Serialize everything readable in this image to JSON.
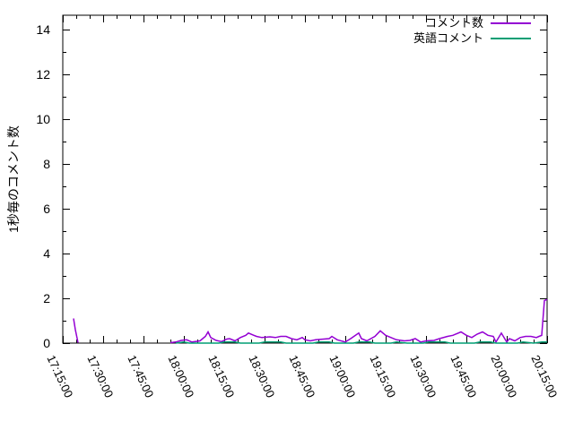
{
  "chart_data": {
    "type": "line",
    "title": "",
    "xlabel": "",
    "ylabel": "1秒毎のコメント数",
    "ylim": [
      0,
      14.64
    ],
    "ytick_values": [
      0,
      2,
      4,
      6,
      8,
      10,
      12,
      14
    ],
    "ytick_minor_step": 1,
    "xtick_labels": [
      "17:15:00",
      "17:30:00",
      "17:45:00",
      "18:00:00",
      "18:15:00",
      "18:30:00",
      "18:45:00",
      "19:00:00",
      "19:15:00",
      "19:30:00",
      "19:45:00",
      "20:00:00",
      "20:15:00"
    ],
    "x_start": "17:15:00",
    "x_end": "20:15:00",
    "x_minor_interval_seconds": 300,
    "x_major_interval_seconds": 900,
    "grid": false,
    "legend_position": "top-right-inside",
    "axis_color": "#000000",
    "background_color": "#ffffff",
    "series": [
      {
        "name": "コメント数",
        "key": "comments",
        "color": "#9400d3",
        "segments": [
          [
            [
              "17:19:00",
              1.1
            ],
            [
              "17:19:40",
              0.6
            ],
            [
              "17:20:40",
              0.02
            ]
          ],
          [
            [
              "17:55:00",
              0.02
            ],
            [
              "17:57:00",
              0.05
            ],
            [
              "17:59:00",
              0.12
            ],
            [
              "18:01:00",
              0.15
            ],
            [
              "18:03:00",
              0.05
            ],
            [
              "18:06:00",
              0.1
            ],
            [
              "18:08:00",
              0.3
            ],
            [
              "18:09:00",
              0.5
            ],
            [
              "18:10:00",
              0.25
            ],
            [
              "18:12:00",
              0.12
            ],
            [
              "18:14:00",
              0.07
            ],
            [
              "18:16:00",
              0.18
            ],
            [
              "18:17:00",
              0.2
            ],
            [
              "18:19:00",
              0.1
            ],
            [
              "18:21:00",
              0.25
            ],
            [
              "18:23:00",
              0.35
            ],
            [
              "18:24:00",
              0.45
            ],
            [
              "18:26:00",
              0.35
            ],
            [
              "18:27:00",
              0.3
            ],
            [
              "18:29:00",
              0.25
            ],
            [
              "18:32:00",
              0.28
            ],
            [
              "18:34:00",
              0.25
            ],
            [
              "18:36:00",
              0.3
            ],
            [
              "18:38:00",
              0.3
            ],
            [
              "18:40:00",
              0.2
            ],
            [
              "18:42:00",
              0.15
            ],
            [
              "18:44:00",
              0.25
            ],
            [
              "18:45:00",
              0.15
            ],
            [
              "18:47:00",
              0.1
            ],
            [
              "18:49:00",
              0.15
            ],
            [
              "18:52:00",
              0.18
            ],
            [
              "18:54:00",
              0.2
            ],
            [
              "18:55:00",
              0.3
            ],
            [
              "18:57:00",
              0.15
            ],
            [
              "19:00:00",
              0.05
            ],
            [
              "19:02:00",
              0.2
            ],
            [
              "19:05:00",
              0.45
            ],
            [
              "19:06:00",
              0.2
            ],
            [
              "19:08:00",
              0.1
            ],
            [
              "19:11:00",
              0.3
            ],
            [
              "19:13:00",
              0.55
            ],
            [
              "19:15:00",
              0.35
            ],
            [
              "19:17:00",
              0.25
            ],
            [
              "19:19:00",
              0.15
            ],
            [
              "19:22:00",
              0.1
            ],
            [
              "19:24:00",
              0.12
            ],
            [
              "19:26:00",
              0.2
            ],
            [
              "19:28:00",
              0.05
            ],
            [
              "19:30:00",
              0.1
            ],
            [
              "19:33:00",
              0.12
            ],
            [
              "19:35:00",
              0.2
            ],
            [
              "19:38:00",
              0.3
            ],
            [
              "19:40:00",
              0.35
            ],
            [
              "19:43:00",
              0.5
            ],
            [
              "19:45:00",
              0.35
            ],
            [
              "19:47:00",
              0.25
            ],
            [
              "19:49:00",
              0.4
            ],
            [
              "19:51:00",
              0.5
            ],
            [
              "19:53:00",
              0.35
            ],
            [
              "19:55:00",
              0.3
            ],
            [
              "19:56:00",
              0.05
            ],
            [
              "19:58:00",
              0.45
            ],
            [
              "20:00:00",
              0.05
            ],
            [
              "20:01:00",
              0.2
            ],
            [
              "20:03:00",
              0.1
            ],
            [
              "20:05:00",
              0.25
            ],
            [
              "20:07:00",
              0.3
            ],
            [
              "20:09:00",
              0.3
            ],
            [
              "20:11:00",
              0.25
            ],
            [
              "20:12:00",
              0.3
            ],
            [
              "20:13:00",
              0.35
            ],
            [
              "20:14:00",
              1.9
            ],
            [
              "20:15:00",
              1.95
            ]
          ]
        ]
      },
      {
        "name": "英語コメント",
        "key": "english-comments",
        "color": "#009e73",
        "segments": [
          [
            [
              "17:57:00",
              0
            ],
            [
              "18:00:00",
              0.05
            ],
            [
              "18:02:00",
              0
            ],
            [
              "18:13:00",
              0
            ],
            [
              "18:15:00",
              0.05
            ],
            [
              "18:19:00",
              0.05
            ],
            [
              "18:21:00",
              0
            ],
            [
              "18:28:00",
              0
            ],
            [
              "18:30:00",
              0.05
            ],
            [
              "18:36:00",
              0.05
            ],
            [
              "18:38:00",
              0
            ],
            [
              "18:48:00",
              0
            ],
            [
              "18:50:00",
              0.05
            ],
            [
              "18:54:00",
              0.05
            ],
            [
              "18:56:00",
              0
            ],
            [
              "19:03:00",
              0
            ],
            [
              "19:05:00",
              0.05
            ],
            [
              "19:09:00",
              0.05
            ],
            [
              "19:11:00",
              0
            ],
            [
              "19:17:00",
              0
            ],
            [
              "19:19:00",
              0.05
            ],
            [
              "19:23:00",
              0
            ],
            [
              "19:29:00",
              0
            ],
            [
              "19:31:00",
              0.05
            ],
            [
              "19:37:00",
              0.05
            ],
            [
              "19:39:00",
              0
            ],
            [
              "19:48:00",
              0
            ],
            [
              "19:50:00",
              0.05
            ],
            [
              "19:54:00",
              0.05
            ],
            [
              "19:56:00",
              0
            ],
            [
              "20:04:00",
              0
            ],
            [
              "20:06:00",
              0.05
            ],
            [
              "20:10:00",
              0
            ],
            [
              "20:13:00",
              0.05
            ],
            [
              "20:15:00",
              0.05
            ]
          ]
        ]
      }
    ]
  }
}
